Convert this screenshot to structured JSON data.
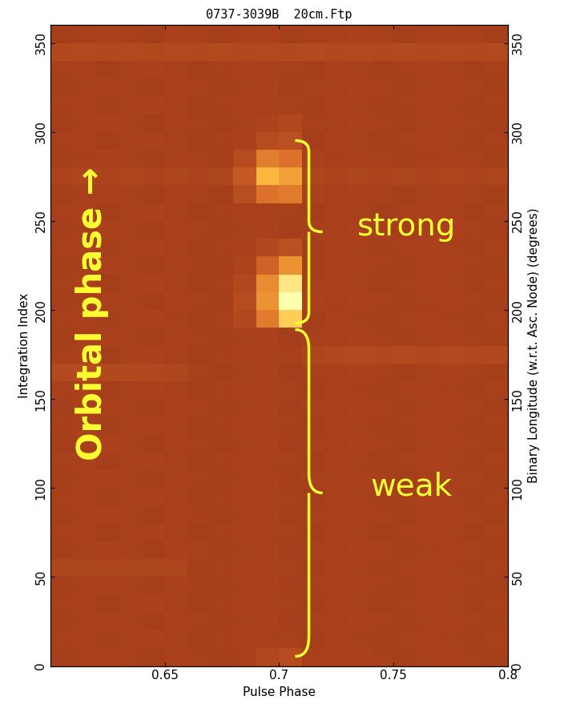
{
  "chart_data": {
    "type": "heatmap",
    "title": "0737-3039B  20cm.Ftp",
    "x_label": "Pulse Phase",
    "y_label": "Integration Index",
    "y2_label": "Binary Longitude (w.r.t. Asc. Node) (degrees)",
    "annotations": [
      "Orbital phase →",
      "strong",
      "weak"
    ],
    "xlim": [
      0.6,
      0.8
    ],
    "xticks": [
      0.65,
      0.7,
      0.75,
      0.8
    ],
    "ylim": [
      0,
      360
    ],
    "yticks": [
      0,
      50,
      100,
      150,
      200,
      250,
      300,
      350
    ],
    "y2lim": [
      0,
      360
    ],
    "y2ticks": [
      0,
      50,
      100,
      150,
      200,
      250,
      300,
      350
    ],
    "grid": false,
    "color_range": [
      0,
      1
    ],
    "x_edges": [
      0.6,
      0.61,
      0.62,
      0.63,
      0.64,
      0.65,
      0.66,
      0.67,
      0.68,
      0.69,
      0.7,
      0.71,
      0.72,
      0.73,
      0.74,
      0.75,
      0.76,
      0.77,
      0.78,
      0.79,
      0.8
    ],
    "y_edges": [
      0,
      10,
      20,
      30,
      40,
      50,
      60,
      70,
      80,
      90,
      100,
      110,
      120,
      130,
      140,
      150,
      160,
      170,
      180,
      190,
      200,
      210,
      220,
      230,
      240,
      250,
      260,
      270,
      280,
      290,
      300,
      310,
      320,
      330,
      340,
      350,
      360
    ],
    "cells": [
      [
        0.24,
        0.25,
        0.26,
        0.25,
        0.24,
        0.26,
        0.25,
        0.24,
        0.25,
        0.29,
        0.32,
        0.25,
        0.25,
        0.26,
        0.25,
        0.24,
        0.25,
        0.26,
        0.25,
        0.24
      ],
      [
        0.25,
        0.26,
        0.24,
        0.25,
        0.26,
        0.25,
        0.24,
        0.25,
        0.26,
        0.25,
        0.25,
        0.24,
        0.26,
        0.25,
        0.24,
        0.25,
        0.26,
        0.25,
        0.24,
        0.25
      ],
      [
        0.24,
        0.25,
        0.26,
        0.25,
        0.24,
        0.26,
        0.25,
        0.24,
        0.25,
        0.26,
        0.24,
        0.25,
        0.25,
        0.26,
        0.25,
        0.24,
        0.25,
        0.26,
        0.25,
        0.24
      ],
      [
        0.25,
        0.26,
        0.24,
        0.25,
        0.26,
        0.25,
        0.24,
        0.25,
        0.26,
        0.25,
        0.25,
        0.24,
        0.26,
        0.25,
        0.24,
        0.25,
        0.26,
        0.25,
        0.24,
        0.25
      ],
      [
        0.24,
        0.25,
        0.26,
        0.25,
        0.24,
        0.26,
        0.25,
        0.24,
        0.25,
        0.26,
        0.24,
        0.25,
        0.25,
        0.26,
        0.25,
        0.24,
        0.25,
        0.26,
        0.25,
        0.24
      ],
      [
        0.28,
        0.28,
        0.28,
        0.28,
        0.28,
        0.28,
        0.24,
        0.25,
        0.26,
        0.25,
        0.25,
        0.24,
        0.26,
        0.25,
        0.24,
        0.25,
        0.26,
        0.25,
        0.24,
        0.25
      ],
      [
        0.24,
        0.25,
        0.26,
        0.25,
        0.24,
        0.26,
        0.25,
        0.24,
        0.25,
        0.26,
        0.24,
        0.25,
        0.25,
        0.26,
        0.25,
        0.24,
        0.25,
        0.26,
        0.25,
        0.24
      ],
      [
        0.25,
        0.26,
        0.24,
        0.25,
        0.26,
        0.25,
        0.24,
        0.25,
        0.26,
        0.25,
        0.25,
        0.24,
        0.26,
        0.25,
        0.24,
        0.25,
        0.26,
        0.25,
        0.24,
        0.25
      ],
      [
        0.24,
        0.25,
        0.26,
        0.25,
        0.24,
        0.26,
        0.25,
        0.24,
        0.25,
        0.26,
        0.24,
        0.25,
        0.25,
        0.26,
        0.25,
        0.24,
        0.25,
        0.26,
        0.25,
        0.24
      ],
      [
        0.25,
        0.26,
        0.24,
        0.25,
        0.26,
        0.25,
        0.24,
        0.25,
        0.26,
        0.25,
        0.25,
        0.24,
        0.26,
        0.25,
        0.24,
        0.25,
        0.26,
        0.25,
        0.24,
        0.25
      ],
      [
        0.24,
        0.25,
        0.26,
        0.25,
        0.24,
        0.26,
        0.25,
        0.24,
        0.25,
        0.26,
        0.24,
        0.25,
        0.25,
        0.26,
        0.25,
        0.24,
        0.25,
        0.26,
        0.25,
        0.24
      ],
      [
        0.25,
        0.26,
        0.24,
        0.25,
        0.26,
        0.25,
        0.24,
        0.25,
        0.26,
        0.25,
        0.25,
        0.24,
        0.26,
        0.25,
        0.24,
        0.25,
        0.26,
        0.25,
        0.24,
        0.25
      ],
      [
        0.24,
        0.25,
        0.26,
        0.25,
        0.24,
        0.26,
        0.25,
        0.24,
        0.25,
        0.26,
        0.24,
        0.25,
        0.25,
        0.26,
        0.25,
        0.24,
        0.25,
        0.26,
        0.25,
        0.24
      ],
      [
        0.25,
        0.26,
        0.24,
        0.25,
        0.26,
        0.25,
        0.24,
        0.25,
        0.26,
        0.25,
        0.25,
        0.24,
        0.26,
        0.25,
        0.24,
        0.25,
        0.26,
        0.25,
        0.24,
        0.25
      ],
      [
        0.24,
        0.25,
        0.26,
        0.25,
        0.24,
        0.26,
        0.25,
        0.24,
        0.25,
        0.26,
        0.24,
        0.25,
        0.25,
        0.26,
        0.25,
        0.24,
        0.25,
        0.26,
        0.25,
        0.24
      ],
      [
        0.25,
        0.26,
        0.24,
        0.25,
        0.26,
        0.25,
        0.24,
        0.25,
        0.26,
        0.25,
        0.25,
        0.24,
        0.26,
        0.25,
        0.24,
        0.25,
        0.26,
        0.25,
        0.24,
        0.25
      ],
      [
        0.31,
        0.32,
        0.3,
        0.3,
        0.29,
        0.28,
        0.25,
        0.24,
        0.25,
        0.26,
        0.24,
        0.25,
        0.25,
        0.26,
        0.25,
        0.24,
        0.25,
        0.26,
        0.25,
        0.24
      ],
      [
        0.25,
        0.26,
        0.24,
        0.25,
        0.26,
        0.25,
        0.24,
        0.25,
        0.26,
        0.25,
        0.25,
        0.28,
        0.3,
        0.31,
        0.3,
        0.31,
        0.3,
        0.31,
        0.3,
        0.3
      ],
      [
        0.24,
        0.25,
        0.26,
        0.25,
        0.24,
        0.26,
        0.25,
        0.24,
        0.25,
        0.26,
        0.24,
        0.25,
        0.25,
        0.26,
        0.25,
        0.24,
        0.25,
        0.26,
        0.25,
        0.24
      ],
      [
        0.25,
        0.26,
        0.24,
        0.25,
        0.26,
        0.25,
        0.24,
        0.25,
        0.3,
        0.55,
        0.8,
        0.24,
        0.26,
        0.25,
        0.24,
        0.25,
        0.26,
        0.25,
        0.24,
        0.25
      ],
      [
        0.24,
        0.25,
        0.26,
        0.25,
        0.24,
        0.26,
        0.25,
        0.24,
        0.32,
        0.62,
        1.0,
        0.26,
        0.25,
        0.26,
        0.25,
        0.24,
        0.25,
        0.26,
        0.25,
        0.24
      ],
      [
        0.25,
        0.26,
        0.24,
        0.25,
        0.26,
        0.25,
        0.24,
        0.25,
        0.3,
        0.6,
        0.9,
        0.25,
        0.26,
        0.25,
        0.24,
        0.25,
        0.26,
        0.25,
        0.24,
        0.25
      ],
      [
        0.24,
        0.25,
        0.26,
        0.25,
        0.24,
        0.26,
        0.25,
        0.24,
        0.27,
        0.45,
        0.62,
        0.24,
        0.25,
        0.26,
        0.25,
        0.24,
        0.25,
        0.26,
        0.25,
        0.24
      ],
      [
        0.25,
        0.26,
        0.24,
        0.25,
        0.26,
        0.25,
        0.24,
        0.25,
        0.26,
        0.3,
        0.34,
        0.24,
        0.26,
        0.25,
        0.24,
        0.25,
        0.26,
        0.25,
        0.24,
        0.25
      ],
      [
        0.24,
        0.25,
        0.26,
        0.25,
        0.24,
        0.26,
        0.25,
        0.24,
        0.25,
        0.26,
        0.24,
        0.25,
        0.25,
        0.26,
        0.25,
        0.24,
        0.25,
        0.26,
        0.25,
        0.24
      ],
      [
        0.25,
        0.26,
        0.24,
        0.25,
        0.26,
        0.25,
        0.24,
        0.25,
        0.26,
        0.25,
        0.25,
        0.24,
        0.26,
        0.25,
        0.24,
        0.25,
        0.26,
        0.25,
        0.24,
        0.25
      ],
      [
        0.24,
        0.25,
        0.26,
        0.25,
        0.24,
        0.26,
        0.25,
        0.24,
        0.33,
        0.52,
        0.55,
        0.26,
        0.25,
        0.26,
        0.25,
        0.24,
        0.25,
        0.26,
        0.25,
        0.24
      ],
      [
        0.27,
        0.28,
        0.27,
        0.28,
        0.27,
        0.28,
        0.27,
        0.28,
        0.4,
        0.72,
        0.66,
        0.28,
        0.27,
        0.28,
        0.27,
        0.28,
        0.27,
        0.28,
        0.27,
        0.28
      ],
      [
        0.24,
        0.25,
        0.26,
        0.25,
        0.24,
        0.26,
        0.25,
        0.24,
        0.32,
        0.56,
        0.52,
        0.26,
        0.25,
        0.26,
        0.25,
        0.24,
        0.25,
        0.26,
        0.25,
        0.24
      ],
      [
        0.25,
        0.26,
        0.24,
        0.25,
        0.26,
        0.25,
        0.24,
        0.25,
        0.26,
        0.32,
        0.34,
        0.24,
        0.26,
        0.25,
        0.24,
        0.25,
        0.26,
        0.25,
        0.24,
        0.25
      ],
      [
        0.24,
        0.25,
        0.26,
        0.25,
        0.24,
        0.26,
        0.25,
        0.24,
        0.25,
        0.27,
        0.3,
        0.25,
        0.25,
        0.26,
        0.25,
        0.24,
        0.25,
        0.26,
        0.25,
        0.24
      ],
      [
        0.25,
        0.26,
        0.24,
        0.25,
        0.26,
        0.25,
        0.24,
        0.25,
        0.26,
        0.25,
        0.25,
        0.24,
        0.26,
        0.25,
        0.24,
        0.25,
        0.26,
        0.25,
        0.24,
        0.25
      ],
      [
        0.24,
        0.25,
        0.26,
        0.25,
        0.24,
        0.26,
        0.25,
        0.24,
        0.25,
        0.26,
        0.24,
        0.25,
        0.25,
        0.26,
        0.25,
        0.24,
        0.25,
        0.26,
        0.25,
        0.24
      ],
      [
        0.25,
        0.26,
        0.24,
        0.25,
        0.26,
        0.25,
        0.24,
        0.25,
        0.26,
        0.25,
        0.25,
        0.24,
        0.26,
        0.25,
        0.24,
        0.25,
        0.26,
        0.25,
        0.24,
        0.25
      ],
      [
        0.3,
        0.31,
        0.3,
        0.31,
        0.3,
        0.31,
        0.3,
        0.31,
        0.3,
        0.31,
        0.3,
        0.31,
        0.3,
        0.31,
        0.3,
        0.31,
        0.3,
        0.31,
        0.3,
        0.31
      ],
      [
        0.24,
        0.25,
        0.26,
        0.25,
        0.24,
        0.26,
        0.25,
        0.24,
        0.25,
        0.26,
        0.24,
        0.25,
        0.25,
        0.26,
        0.25,
        0.24,
        0.25,
        0.26,
        0.25,
        0.24
      ]
    ]
  }
}
